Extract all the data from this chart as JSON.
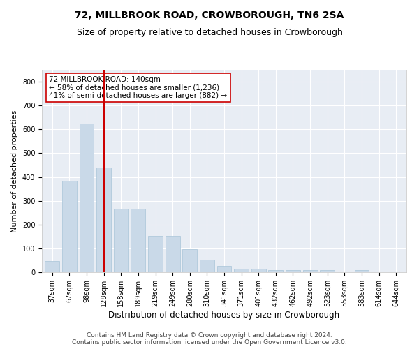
{
  "title": "72, MILLBROOK ROAD, CROWBOROUGH, TN6 2SA",
  "subtitle": "Size of property relative to detached houses in Crowborough",
  "xlabel": "Distribution of detached houses by size in Crowborough",
  "ylabel": "Number of detached properties",
  "categories": [
    "37sqm",
    "67sqm",
    "98sqm",
    "128sqm",
    "158sqm",
    "189sqm",
    "219sqm",
    "249sqm",
    "280sqm",
    "310sqm",
    "341sqm",
    "371sqm",
    "401sqm",
    "432sqm",
    "462sqm",
    "492sqm",
    "523sqm",
    "553sqm",
    "583sqm",
    "614sqm",
    "644sqm"
  ],
  "values": [
    47,
    385,
    625,
    440,
    268,
    268,
    152,
    152,
    97,
    52,
    27,
    15,
    15,
    10,
    10,
    10,
    10,
    1,
    10,
    1,
    1
  ],
  "bar_color": "#c9d9e8",
  "bar_edgecolor": "#a8c4d8",
  "vline_x": 3,
  "vline_color": "#cc0000",
  "annotation_text": "72 MILLBROOK ROAD: 140sqm\n← 58% of detached houses are smaller (1,236)\n41% of semi-detached houses are larger (882) →",
  "annotation_box_color": "#ffffff",
  "annotation_box_edgecolor": "#cc0000",
  "ylim": [
    0,
    850
  ],
  "yticks": [
    0,
    100,
    200,
    300,
    400,
    500,
    600,
    700,
    800
  ],
  "plot_background": "#e8edf4",
  "footer": "Contains HM Land Registry data © Crown copyright and database right 2024.\nContains public sector information licensed under the Open Government Licence v3.0.",
  "title_fontsize": 10,
  "subtitle_fontsize": 9,
  "xlabel_fontsize": 8.5,
  "ylabel_fontsize": 8,
  "tick_fontsize": 7,
  "footer_fontsize": 6.5,
  "ann_fontsize": 7.5
}
